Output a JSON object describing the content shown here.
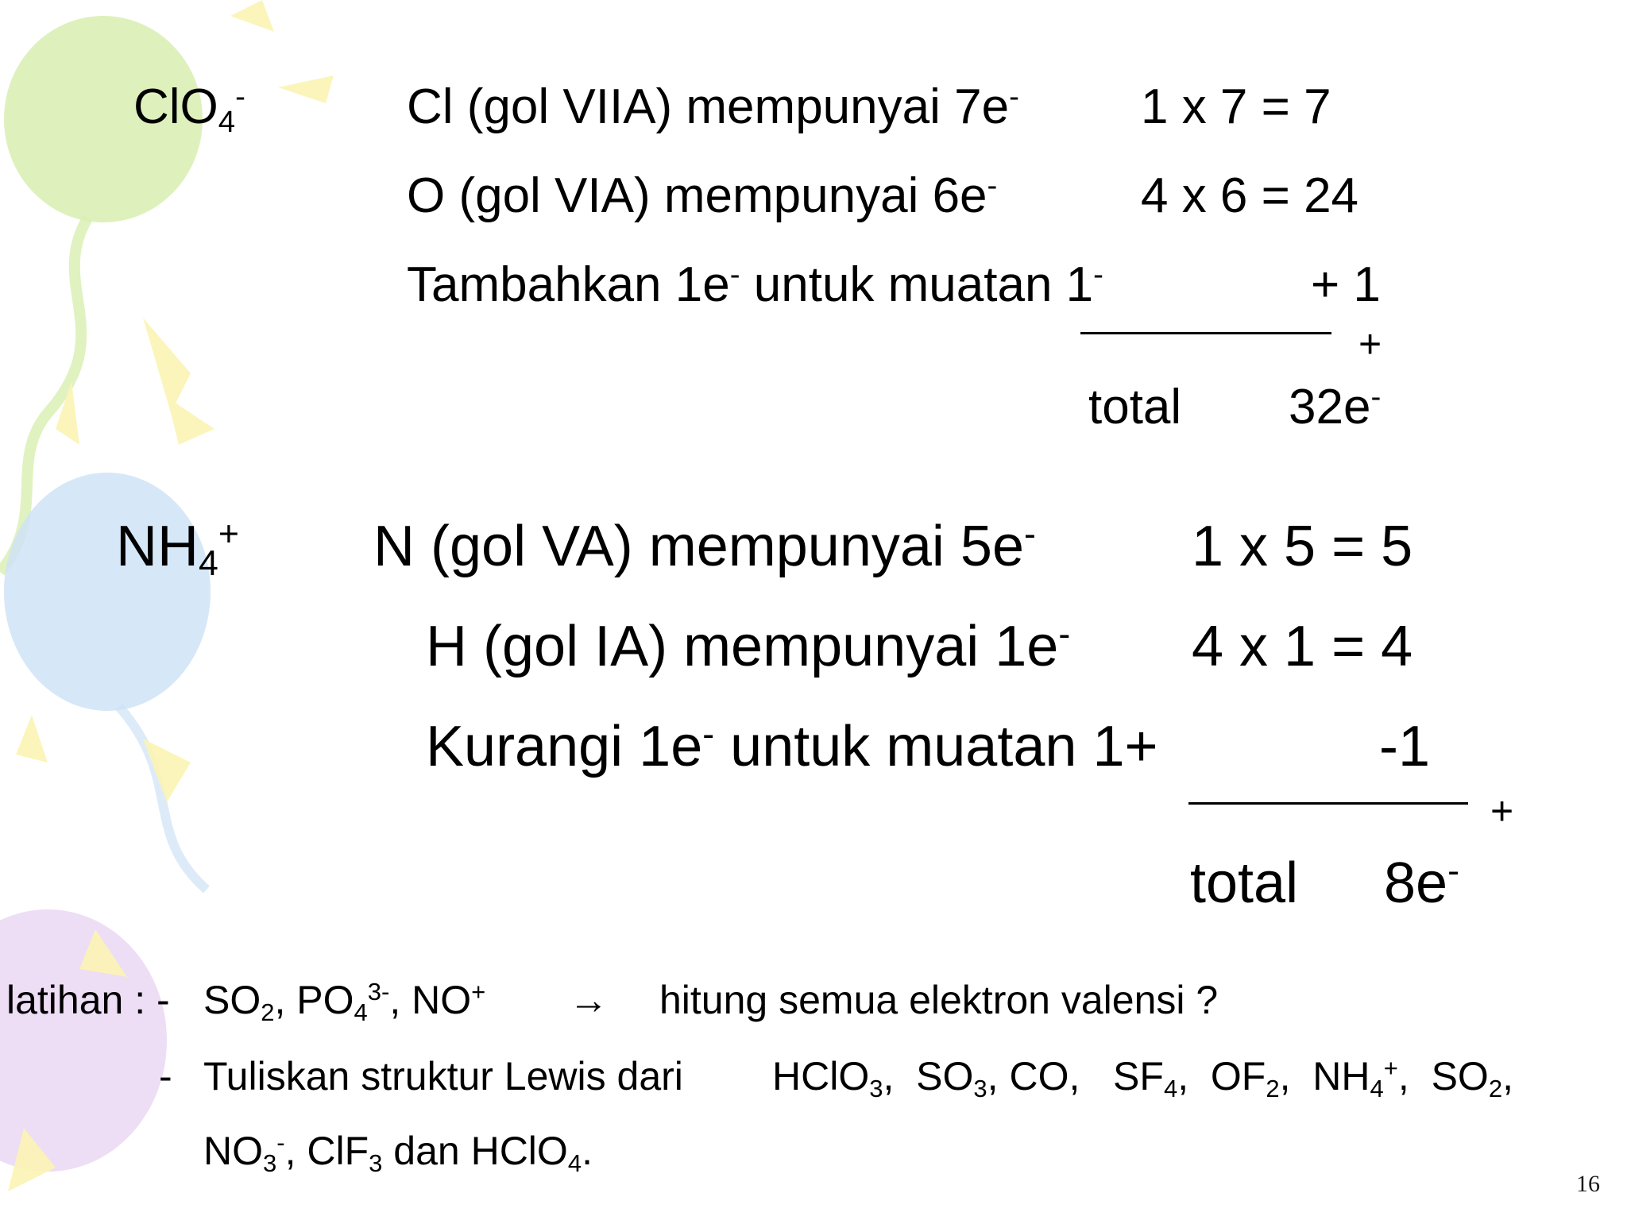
{
  "colors": {
    "balloon_green": "#d8efb0",
    "balloon_blue": "#cfe3f7",
    "balloon_purple": "#ead7f3",
    "ray_yellow": "#fbf4b4"
  },
  "clo4": {
    "ion": "ClO",
    "ion_sub": "4",
    "ion_sup": "-",
    "row1_label": "Cl (gol VIIA)  mempunyai 7e",
    "row1_sup": "-",
    "row1_calc": "1 x 7  = 7",
    "row2_label": "O (gol VIA)  mempunyai 6e",
    "row2_sup": "-",
    "row2_calc": "4 x 6  = 24",
    "row3_a": "Tambahkan 1e",
    "row3_sup1": "-",
    "row3_b": " untuk muatan 1",
    "row3_sup2": "-",
    "row3_calc": "+ 1",
    "plus": "+",
    "total_label": "total",
    "total_value": "32e",
    "total_sup": "-"
  },
  "nh4": {
    "ion": "NH",
    "ion_sub": "4",
    "ion_sup": "+",
    "row1_label": "N (gol VA)  mempunyai 5e",
    "row1_sup": "-",
    "row1_calc": "1 x 5  = 5",
    "row2_label": "H (gol IA)  mempunyai 1e",
    "row2_sup": "-",
    "row2_calc": "4 x 1  = 4",
    "row3_a": "Kurangi 1e",
    "row3_sup": "-",
    "row3_b": " untuk muatan 1+",
    "row3_calc": "-1",
    "plus": "+",
    "total_label": "total",
    "total_value": "8e",
    "total_sup": "-"
  },
  "exercise": {
    "label": "latihan : -",
    "l1_so": "SO",
    "l1_so_sub": "2",
    "l1_po": ", PO",
    "l1_po_sub": "4",
    "l1_po_sup": "3-",
    "l1_no": ", NO",
    "l1_no_sup": "+",
    "arrow": "→",
    "l1_q": "hitung semua elektron valensi ?",
    "dash": "-",
    "l2_a": "Tuliskan struktur Lewis dari",
    "l2_hclo": "HClO",
    "l2_hclo_sub": "3",
    "l2_c1": ",",
    "l2_so3": "SO",
    "l2_so3_sub": "3",
    "l2_co": ", CO,",
    "l2_sf": "SF",
    "l2_sf_sub": "4",
    "l2_c2": ",",
    "l2_of": "OF",
    "l2_of_sub": "2",
    "l2_c3": ",",
    "l2_nh": "NH",
    "l2_nh_sub": "4",
    "l2_nh_sup": "+",
    "l2_c4": ",",
    "l2_so2": "SO",
    "l2_so2_sub": "2",
    "l2_c5": ",",
    "l3_no": "NO",
    "l3_no_sub": "3",
    "l3_no_sup": "-",
    "l3_b": ", ClF",
    "l3_clf_sub": "3",
    "l3_c": " dan HClO",
    "l3_hclo_sub": "4",
    "l3_end": "."
  },
  "page_number": "16"
}
